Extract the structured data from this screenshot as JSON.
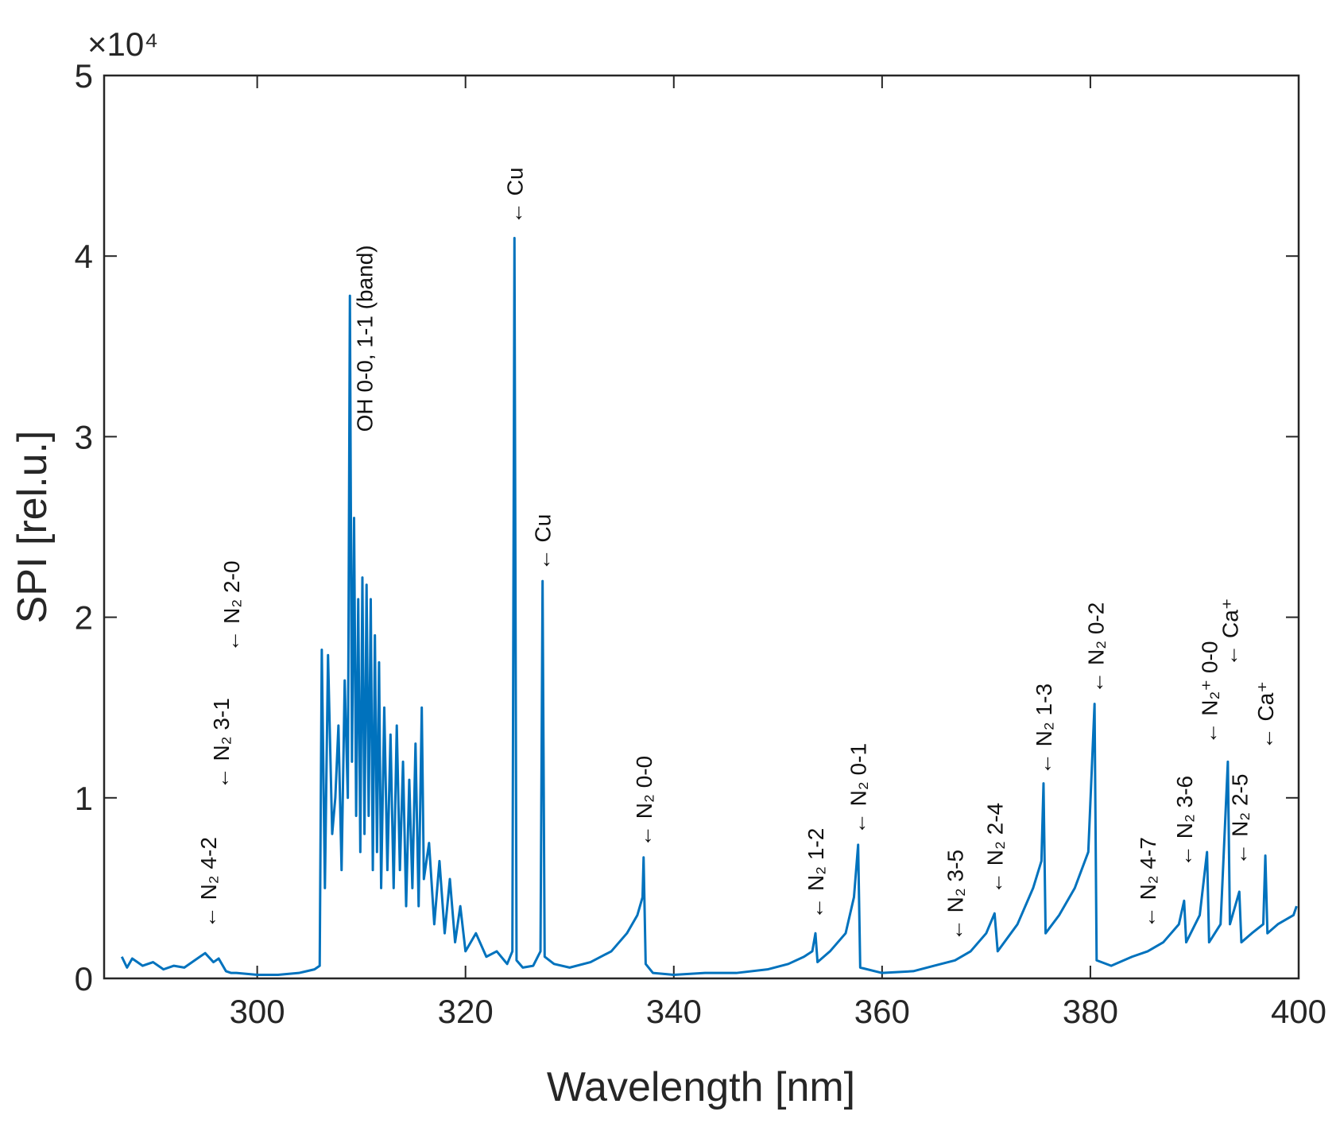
{
  "chart_data": {
    "type": "line",
    "x_label": "Wavelength [nm]",
    "y_label": "SPI [rel.u.]",
    "y_multiplier": "×10⁴",
    "color": "#0072bd",
    "xlim": [
      285.3,
      400
    ],
    "xticks": [
      300,
      320,
      340,
      360,
      380,
      400
    ],
    "ylim": [
      0,
      50000
    ],
    "yticks": [
      0,
      {
        "value": 10000,
        "label": "1"
      },
      {
        "value": 20000,
        "label": "2"
      },
      {
        "value": 30000,
        "label": "3"
      },
      {
        "value": 40000,
        "label": "4"
      },
      {
        "value": 50000,
        "label": "5"
      }
    ],
    "x": [
      287,
      287.5,
      288,
      289,
      290,
      291,
      292,
      293,
      294,
      295,
      295.8,
      296.3,
      297,
      297.5,
      298,
      300,
      302,
      304,
      305.5,
      306,
      306.2,
      306.5,
      306.8,
      307.2,
      307.5,
      307.8,
      308.1,
      308.4,
      308.7,
      308.9,
      309.1,
      309.3,
      309.5,
      309.7,
      309.9,
      310.1,
      310.3,
      310.5,
      310.7,
      310.9,
      311.1,
      311.3,
      311.5,
      311.7,
      311.9,
      312.2,
      312.5,
      312.8,
      313.1,
      313.4,
      313.7,
      314,
      314.3,
      314.6,
      314.9,
      315.2,
      315.5,
      315.8,
      316,
      316.5,
      317,
      317.5,
      318,
      318.5,
      319,
      319.5,
      320,
      321,
      322,
      323,
      324,
      324.5,
      324.7,
      324.9,
      325.5,
      326.5,
      327.2,
      327.4,
      327.6,
      328.5,
      330,
      332,
      334,
      335.5,
      336.5,
      337,
      337.1,
      337.3,
      338,
      340,
      343,
      346,
      349,
      351,
      352.5,
      353.3,
      353.6,
      353.8,
      355,
      356.5,
      357.3,
      357.7,
      357.9,
      360,
      363,
      365,
      367,
      368.5,
      370,
      370.8,
      371.1,
      373,
      374.5,
      375.3,
      375.5,
      375.7,
      377,
      378.5,
      379.8,
      380.4,
      380.6,
      382,
      384,
      385.5,
      387,
      388.5,
      389,
      389.2,
      390.5,
      391.2,
      391.4,
      392.5,
      393.2,
      393.4,
      394.3,
      394.5,
      395.5,
      396.6,
      396.8,
      397,
      398,
      399.5,
      399.8
    ],
    "values": [
      1200,
      600,
      1100,
      700,
      900,
      500,
      700,
      600,
      1000,
      1400,
      900,
      1100,
      400,
      300,
      300,
      200,
      200,
      300,
      500,
      700,
      18200,
      5000,
      17900,
      8000,
      10000,
      14000,
      6000,
      16500,
      10000,
      37800,
      12000,
      25500,
      9000,
      21000,
      7000,
      22200,
      8000,
      21800,
      9000,
      21000,
      6000,
      19000,
      7000,
      17500,
      5000,
      15000,
      6000,
      13500,
      5000,
      14000,
      6000,
      12000,
      4000,
      11000,
      5000,
      13000,
      4000,
      15000,
      5500,
      7500,
      3000,
      6500,
      2500,
      5500,
      2000,
      4000,
      1500,
      2500,
      1200,
      1500,
      800,
      1500,
      41000,
      1000,
      600,
      700,
      1500,
      22000,
      1200,
      800,
      600,
      900,
      1500,
      2500,
      3500,
      4500,
      6700,
      800,
      300,
      200,
      300,
      300,
      500,
      800,
      1200,
      1500,
      2500,
      900,
      1500,
      2500,
      4500,
      7400,
      600,
      300,
      400,
      700,
      1000,
      1500,
      2500,
      3600,
      1500,
      3000,
      5000,
      6500,
      10800,
      2500,
      3500,
      5000,
      7000,
      15200,
      1000,
      700,
      1200,
      1500,
      2000,
      3000,
      4300,
      2000,
      3500,
      7000,
      2000,
      3000,
      12000,
      3000,
      4800,
      2000,
      2500,
      3000,
      6800,
      2500,
      3000,
      3500,
      4000
    ],
    "annotations": [
      {
        "text": "← N₂ 4-2",
        "x": 295.3,
        "y": 2500
      },
      {
        "text": "← N₂ 3-1",
        "x": 296.5,
        "y": 10200
      },
      {
        "text": "← N₂ 2-0",
        "x": 297.5,
        "y": 17800
      },
      {
        "text": "OH 0-0, 1-1 (band)",
        "x": 310.3,
        "y": 30000
      },
      {
        "text": "← Cu",
        "x": 324.7,
        "y": 41500
      },
      {
        "text": "← Cu",
        "x": 327.4,
        "y": 22300
      },
      {
        "text": "← N₂ 0-0",
        "x": 337.1,
        "y": 7000
      },
      {
        "text": "← N₂ 1-2",
        "x": 353.6,
        "y": 3000
      },
      {
        "text": "← N₂ 0-1",
        "x": 357.7,
        "y": 7700
      },
      {
        "text": "← N₂ 3-5",
        "x": 367,
        "y": 1800
      },
      {
        "text": "← N₂ 2-4",
        "x": 370.8,
        "y": 4400
      },
      {
        "text": "← N₂ 1-3",
        "x": 375.5,
        "y": 11000
      },
      {
        "text": "← N₂ 0-2",
        "x": 380.5,
        "y": 15500
      },
      {
        "text": "← N₂ 4-7",
        "x": 385.5,
        "y": 2500
      },
      {
        "text": "← N₂ 3-6",
        "x": 389,
        "y": 5900
      },
      {
        "text": "← N₂⁺ 0-0",
        "x": 391.4,
        "y": 12700
      },
      {
        "text": "← Ca⁺",
        "x": 393.4,
        "y": 17000
      },
      {
        "text": "← N₂ 2-5",
        "x": 394.3,
        "y": 6000
      },
      {
        "text": "← Ca⁺",
        "x": 396.8,
        "y": 12400
      }
    ]
  }
}
